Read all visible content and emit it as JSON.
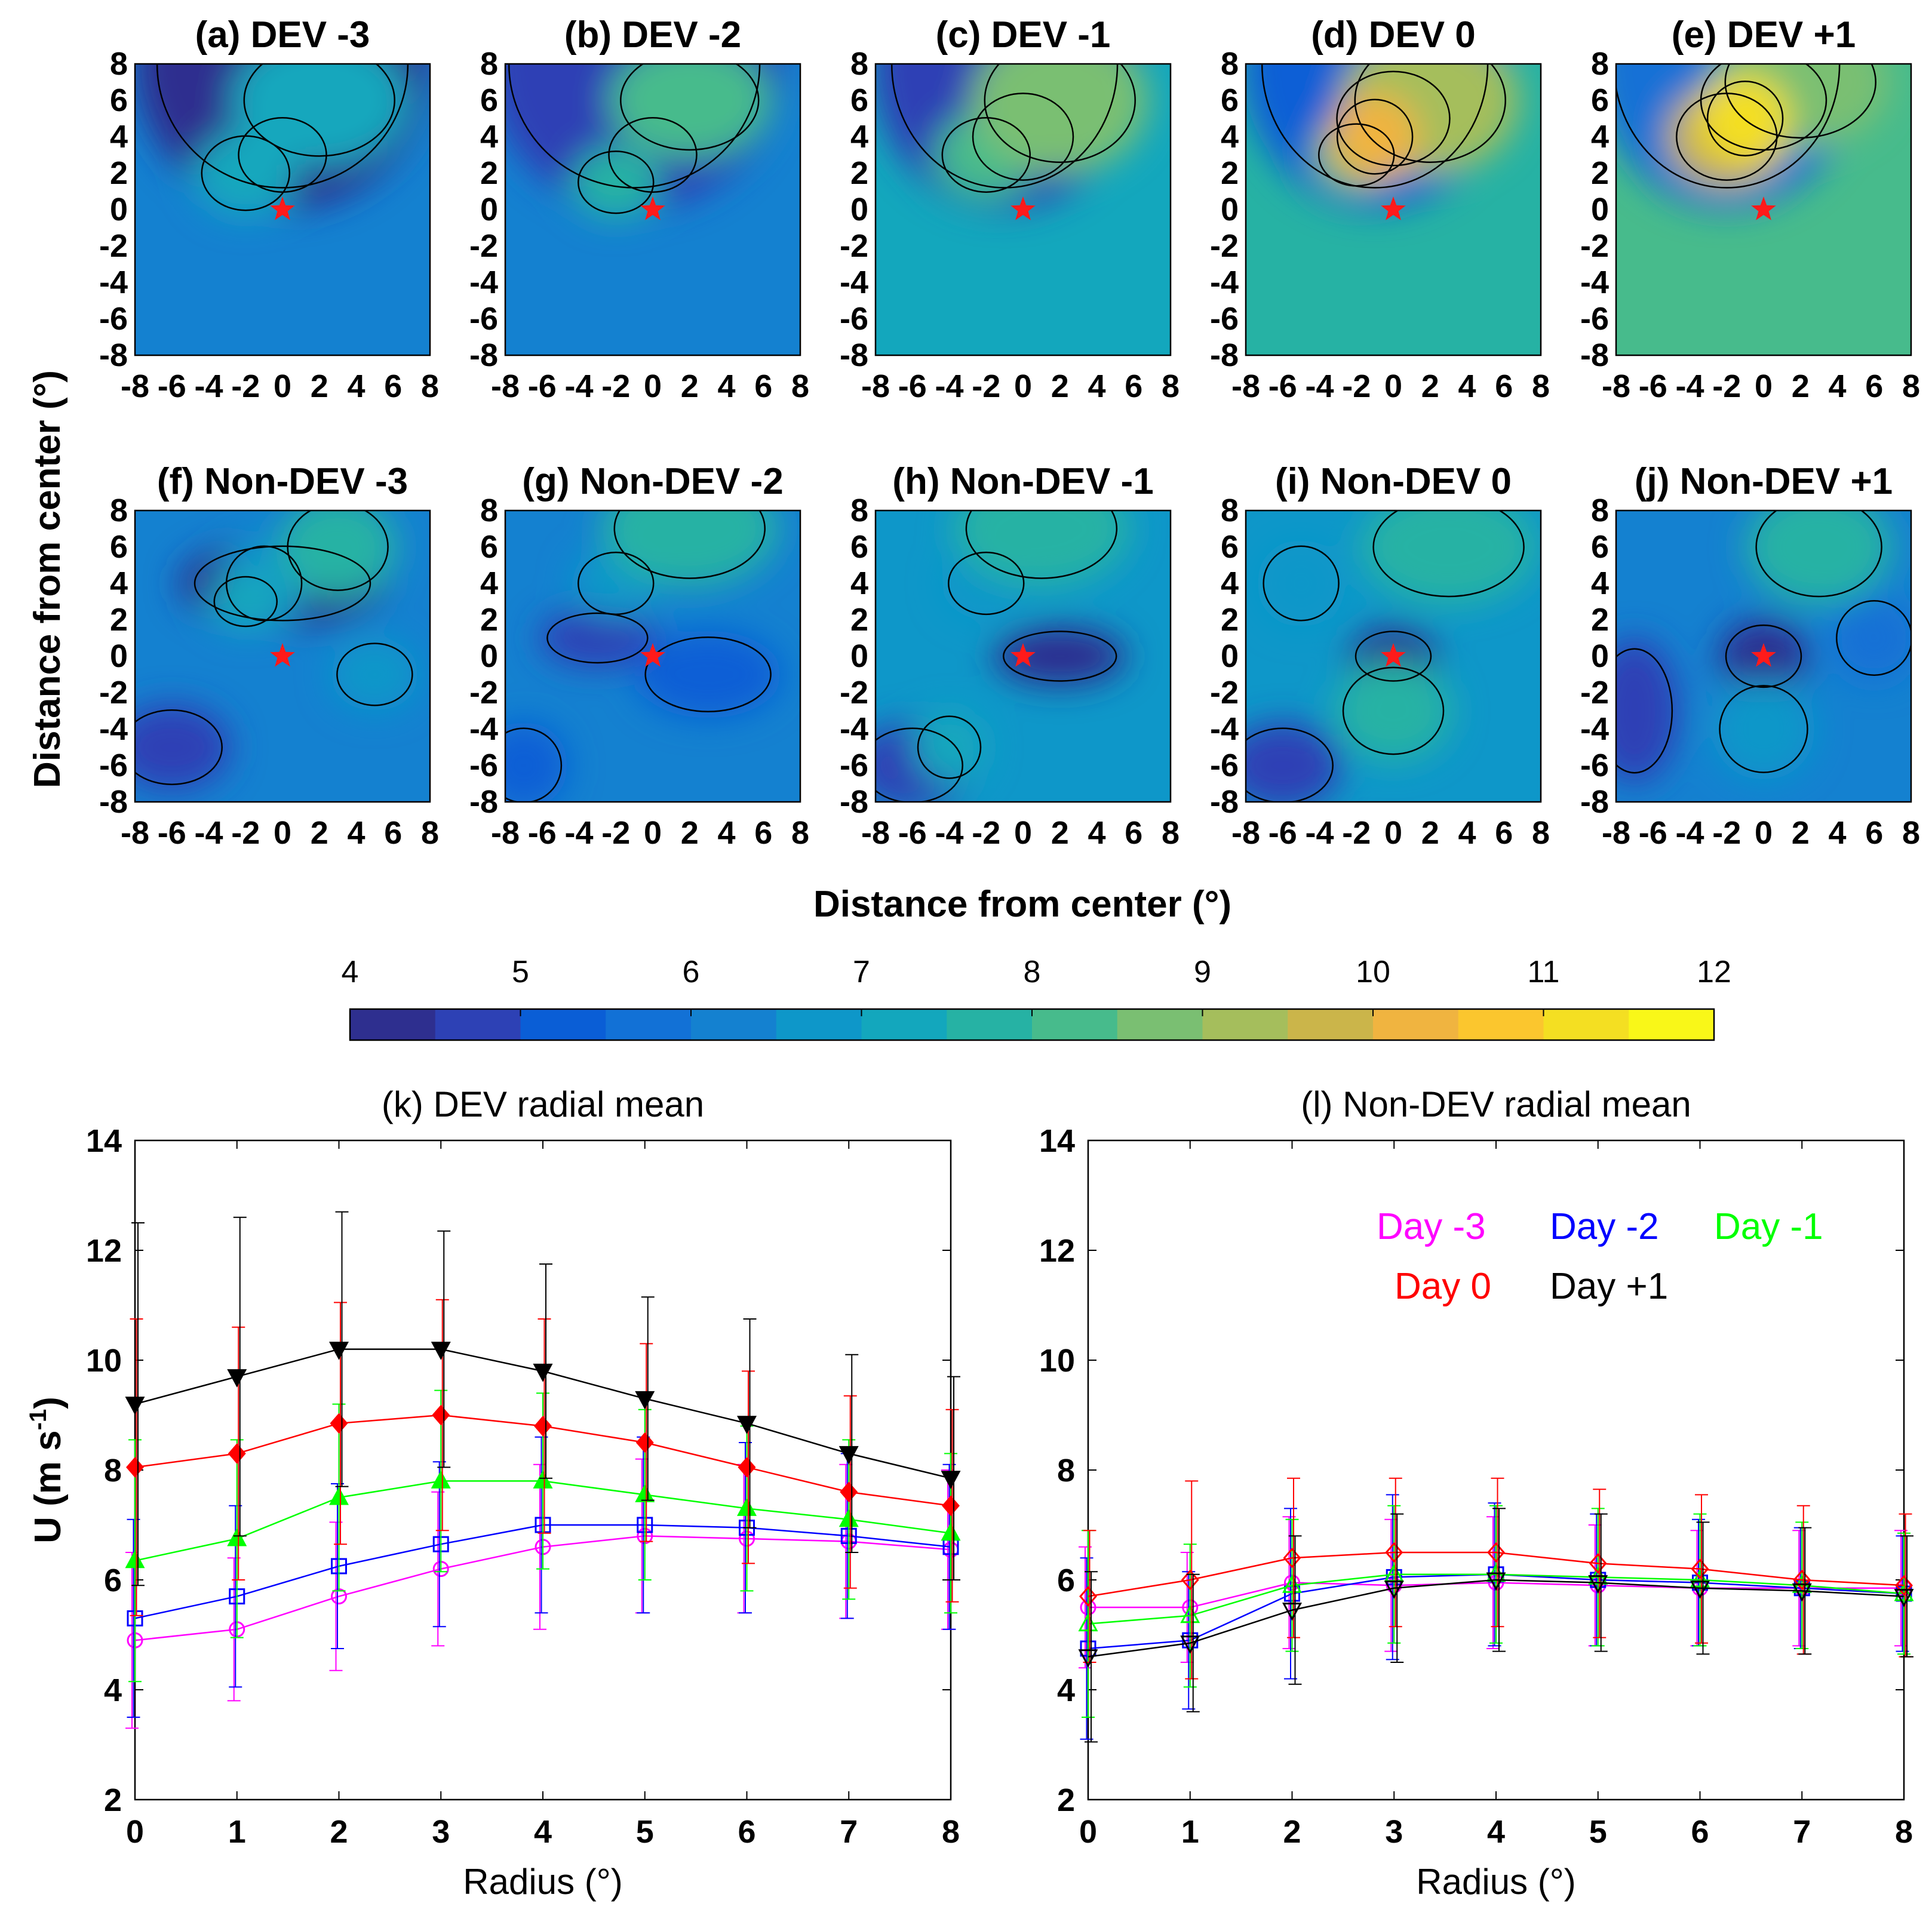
{
  "figure": {
    "shared_xlabel": "Distance from center (°)",
    "shared_ylabel": "Distance from center (°)"
  },
  "contour_panels": [
    {
      "title": "(a) DEV -3"
    },
    {
      "title": "(b) DEV -2"
    },
    {
      "title": "(c) DEV -1"
    },
    {
      "title": "(d) DEV 0"
    },
    {
      "title": "(e) DEV +1"
    },
    {
      "title": "(f) Non-DEV -3"
    },
    {
      "title": "(g) Non-DEV -2"
    },
    {
      "title": "(h) Non-DEV -1"
    },
    {
      "title": "(i) Non-DEV 0"
    },
    {
      "title": "(j) Non-DEV +1"
    }
  ],
  "contour_axes": {
    "x_ticks": [
      "-8",
      "-6",
      "-4",
      "-2",
      "0",
      "2",
      "4",
      "6",
      "8"
    ],
    "y_ticks": [
      "8",
      "6",
      "4",
      "2",
      "0",
      "-2",
      "-4",
      "-6",
      "-8"
    ],
    "range": [
      -8,
      8
    ]
  },
  "colorbar": {
    "ticks": [
      "4",
      "5",
      "6",
      "7",
      "8",
      "9",
      "10",
      "11",
      "12"
    ],
    "colors": [
      "#2e2f8f",
      "#2d41b5",
      "#0a5ed6",
      "#1271d6",
      "#1481d0",
      "#0e97c9",
      "#13a7bd",
      "#26b2a4",
      "#47bb8c",
      "#7abf72",
      "#a5be5c",
      "#cbb54a",
      "#f0b440",
      "#fbc62e",
      "#f4df22",
      "#f9f718"
    ]
  },
  "chart_data": [
    {
      "type": "line",
      "title": "(k) DEV radial mean",
      "xlabel": "Radius (°)",
      "ylabel_main": "U (m s",
      "ylabel_sup": "-1",
      "ylabel_end": ")",
      "xlim": [
        0,
        8
      ],
      "ylim": [
        2,
        14
      ],
      "x_ticks": [
        "0",
        "1",
        "2",
        "3",
        "4",
        "5",
        "6",
        "7",
        "8"
      ],
      "y_ticks": [
        "2",
        "4",
        "6",
        "8",
        "10",
        "12",
        "14"
      ],
      "x": [
        0,
        1,
        2,
        3,
        4,
        5,
        6,
        7,
        8
      ],
      "series": [
        {
          "name": "Day -3",
          "color": "#ff00ff",
          "marker": "circle",
          "filled": false,
          "values": [
            4.9,
            5.1,
            5.7,
            6.2,
            6.6,
            6.8,
            6.75,
            6.7,
            6.55
          ],
          "err": [
            1.6,
            1.3,
            1.35,
            1.4,
            1.5,
            1.4,
            1.35,
            1.4,
            1.45
          ]
        },
        {
          "name": "Day -2",
          "color": "#0000ff",
          "marker": "square",
          "filled": false,
          "values": [
            5.3,
            5.7,
            6.25,
            6.65,
            7.0,
            7.0,
            6.95,
            6.8,
            6.6
          ],
          "err": [
            1.8,
            1.65,
            1.5,
            1.5,
            1.6,
            1.6,
            1.55,
            1.5,
            1.5
          ]
        },
        {
          "name": "Day -1",
          "color": "#00ff00",
          "marker": "triangle-up",
          "filled": true,
          "values": [
            6.35,
            6.75,
            7.5,
            7.8,
            7.8,
            7.55,
            7.3,
            7.1,
            6.85
          ],
          "err": [
            2.2,
            1.8,
            1.7,
            1.65,
            1.6,
            1.55,
            1.5,
            1.45,
            1.45
          ]
        },
        {
          "name": "Day 0",
          "color": "#ff0000",
          "marker": "diamond",
          "filled": true,
          "values": [
            8.05,
            8.3,
            8.85,
            9.0,
            8.8,
            8.5,
            8.05,
            7.6,
            7.35
          ],
          "err": [
            2.7,
            2.3,
            2.2,
            2.1,
            1.95,
            1.8,
            1.75,
            1.75,
            1.75
          ]
        },
        {
          "name": "Day +1",
          "color": "#000000",
          "marker": "triangle-down",
          "filled": true,
          "values": [
            9.2,
            9.7,
            10.2,
            10.2,
            9.8,
            9.3,
            8.85,
            8.3,
            7.85
          ],
          "err": [
            3.3,
            2.9,
            2.5,
            2.15,
            1.95,
            1.85,
            1.9,
            1.8,
            1.85
          ]
        }
      ]
    },
    {
      "type": "line",
      "title": "(l) Non-DEV radial mean",
      "xlabel": "Radius (°)",
      "xlim": [
        0,
        8
      ],
      "ylim": [
        2,
        14
      ],
      "x_ticks": [
        "0",
        "1",
        "2",
        "3",
        "4",
        "5",
        "6",
        "7",
        "8"
      ],
      "y_ticks": [
        "2",
        "4",
        "6",
        "8",
        "10",
        "12",
        "14"
      ],
      "x": [
        0,
        1,
        2,
        3,
        4,
        5,
        6,
        7,
        8
      ],
      "series": [
        {
          "name": "Day -3",
          "color": "#ff00ff",
          "marker": "circle",
          "filled": false,
          "values": [
            5.5,
            5.5,
            5.95,
            5.9,
            5.95,
            5.9,
            5.85,
            5.85,
            5.85
          ],
          "err": [
            1.1,
            1.0,
            1.2,
            1.2,
            1.2,
            1.1,
            1.05,
            1.05,
            1.05
          ]
        },
        {
          "name": "Day -2",
          "color": "#0000ff",
          "marker": "square",
          "filled": false,
          "values": [
            4.75,
            4.9,
            5.75,
            6.05,
            6.1,
            6.0,
            5.95,
            5.85,
            5.75
          ],
          "err": [
            1.65,
            1.25,
            1.55,
            1.5,
            1.3,
            1.2,
            1.15,
            1.1,
            1.05
          ]
        },
        {
          "name": "Day -1",
          "color": "#00ff00",
          "marker": "triangle-up",
          "filled": false,
          "values": [
            5.2,
            5.35,
            5.9,
            6.1,
            6.1,
            6.05,
            6.0,
            5.9,
            5.75
          ],
          "err": [
            1.7,
            1.3,
            1.2,
            1.25,
            1.25,
            1.25,
            1.2,
            1.15,
            1.1
          ]
        },
        {
          "name": "Day 0",
          "color": "#ff0000",
          "marker": "diamond",
          "filled": false,
          "values": [
            5.7,
            6.0,
            6.4,
            6.5,
            6.5,
            6.3,
            6.2,
            6.0,
            5.9
          ],
          "err": [
            1.2,
            1.8,
            1.45,
            1.35,
            1.35,
            1.35,
            1.35,
            1.35,
            1.3
          ]
        },
        {
          "name": "Day +1",
          "color": "#000000",
          "marker": "triangle-down",
          "filled": false,
          "values": [
            4.6,
            4.85,
            5.45,
            5.85,
            6.0,
            5.95,
            5.85,
            5.8,
            5.7
          ],
          "err": [
            1.55,
            1.25,
            1.35,
            1.35,
            1.3,
            1.25,
            1.2,
            1.15,
            1.1
          ]
        }
      ],
      "legend": [
        {
          "label": "Day -3",
          "color": "#ff00ff"
        },
        {
          "label": "Day -2",
          "color": "#0000ff"
        },
        {
          "label": "Day -1",
          "color": "#00ff00"
        },
        {
          "label": "Day 0",
          "color": "#ff0000"
        },
        {
          "label": "Day +1",
          "color": "#000000"
        }
      ]
    }
  ]
}
